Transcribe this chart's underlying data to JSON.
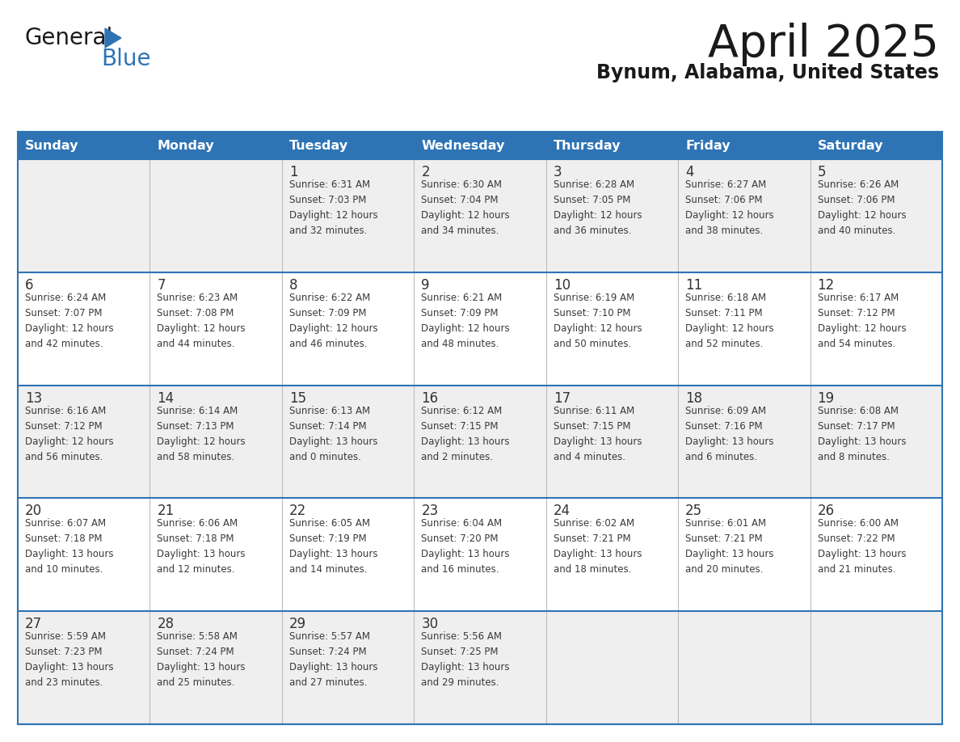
{
  "title": "April 2025",
  "subtitle": "Bynum, Alabama, United States",
  "header_bg_color": "#2E74B5",
  "header_text_color": "#FFFFFF",
  "cell_bg_light": "#EFEFEF",
  "cell_bg_white": "#FFFFFF",
  "text_color": "#333333",
  "border_color": "#2E74B5",
  "divider_color": "#2E74B5",
  "days_of_week": [
    "Sunday",
    "Monday",
    "Tuesday",
    "Wednesday",
    "Thursday",
    "Friday",
    "Saturday"
  ],
  "weeks": [
    [
      {
        "day": "",
        "info": ""
      },
      {
        "day": "",
        "info": ""
      },
      {
        "day": "1",
        "info": "Sunrise: 6:31 AM\nSunset: 7:03 PM\nDaylight: 12 hours\nand 32 minutes."
      },
      {
        "day": "2",
        "info": "Sunrise: 6:30 AM\nSunset: 7:04 PM\nDaylight: 12 hours\nand 34 minutes."
      },
      {
        "day": "3",
        "info": "Sunrise: 6:28 AM\nSunset: 7:05 PM\nDaylight: 12 hours\nand 36 minutes."
      },
      {
        "day": "4",
        "info": "Sunrise: 6:27 AM\nSunset: 7:06 PM\nDaylight: 12 hours\nand 38 minutes."
      },
      {
        "day": "5",
        "info": "Sunrise: 6:26 AM\nSunset: 7:06 PM\nDaylight: 12 hours\nand 40 minutes."
      }
    ],
    [
      {
        "day": "6",
        "info": "Sunrise: 6:24 AM\nSunset: 7:07 PM\nDaylight: 12 hours\nand 42 minutes."
      },
      {
        "day": "7",
        "info": "Sunrise: 6:23 AM\nSunset: 7:08 PM\nDaylight: 12 hours\nand 44 minutes."
      },
      {
        "day": "8",
        "info": "Sunrise: 6:22 AM\nSunset: 7:09 PM\nDaylight: 12 hours\nand 46 minutes."
      },
      {
        "day": "9",
        "info": "Sunrise: 6:21 AM\nSunset: 7:09 PM\nDaylight: 12 hours\nand 48 minutes."
      },
      {
        "day": "10",
        "info": "Sunrise: 6:19 AM\nSunset: 7:10 PM\nDaylight: 12 hours\nand 50 minutes."
      },
      {
        "day": "11",
        "info": "Sunrise: 6:18 AM\nSunset: 7:11 PM\nDaylight: 12 hours\nand 52 minutes."
      },
      {
        "day": "12",
        "info": "Sunrise: 6:17 AM\nSunset: 7:12 PM\nDaylight: 12 hours\nand 54 minutes."
      }
    ],
    [
      {
        "day": "13",
        "info": "Sunrise: 6:16 AM\nSunset: 7:12 PM\nDaylight: 12 hours\nand 56 minutes."
      },
      {
        "day": "14",
        "info": "Sunrise: 6:14 AM\nSunset: 7:13 PM\nDaylight: 12 hours\nand 58 minutes."
      },
      {
        "day": "15",
        "info": "Sunrise: 6:13 AM\nSunset: 7:14 PM\nDaylight: 13 hours\nand 0 minutes."
      },
      {
        "day": "16",
        "info": "Sunrise: 6:12 AM\nSunset: 7:15 PM\nDaylight: 13 hours\nand 2 minutes."
      },
      {
        "day": "17",
        "info": "Sunrise: 6:11 AM\nSunset: 7:15 PM\nDaylight: 13 hours\nand 4 minutes."
      },
      {
        "day": "18",
        "info": "Sunrise: 6:09 AM\nSunset: 7:16 PM\nDaylight: 13 hours\nand 6 minutes."
      },
      {
        "day": "19",
        "info": "Sunrise: 6:08 AM\nSunset: 7:17 PM\nDaylight: 13 hours\nand 8 minutes."
      }
    ],
    [
      {
        "day": "20",
        "info": "Sunrise: 6:07 AM\nSunset: 7:18 PM\nDaylight: 13 hours\nand 10 minutes."
      },
      {
        "day": "21",
        "info": "Sunrise: 6:06 AM\nSunset: 7:18 PM\nDaylight: 13 hours\nand 12 minutes."
      },
      {
        "day": "22",
        "info": "Sunrise: 6:05 AM\nSunset: 7:19 PM\nDaylight: 13 hours\nand 14 minutes."
      },
      {
        "day": "23",
        "info": "Sunrise: 6:04 AM\nSunset: 7:20 PM\nDaylight: 13 hours\nand 16 minutes."
      },
      {
        "day": "24",
        "info": "Sunrise: 6:02 AM\nSunset: 7:21 PM\nDaylight: 13 hours\nand 18 minutes."
      },
      {
        "day": "25",
        "info": "Sunrise: 6:01 AM\nSunset: 7:21 PM\nDaylight: 13 hours\nand 20 minutes."
      },
      {
        "day": "26",
        "info": "Sunrise: 6:00 AM\nSunset: 7:22 PM\nDaylight: 13 hours\nand 21 minutes."
      }
    ],
    [
      {
        "day": "27",
        "info": "Sunrise: 5:59 AM\nSunset: 7:23 PM\nDaylight: 13 hours\nand 23 minutes."
      },
      {
        "day": "28",
        "info": "Sunrise: 5:58 AM\nSunset: 7:24 PM\nDaylight: 13 hours\nand 25 minutes."
      },
      {
        "day": "29",
        "info": "Sunrise: 5:57 AM\nSunset: 7:24 PM\nDaylight: 13 hours\nand 27 minutes."
      },
      {
        "day": "30",
        "info": "Sunrise: 5:56 AM\nSunset: 7:25 PM\nDaylight: 13 hours\nand 29 minutes."
      },
      {
        "day": "",
        "info": ""
      },
      {
        "day": "",
        "info": ""
      },
      {
        "day": "",
        "info": ""
      }
    ]
  ]
}
